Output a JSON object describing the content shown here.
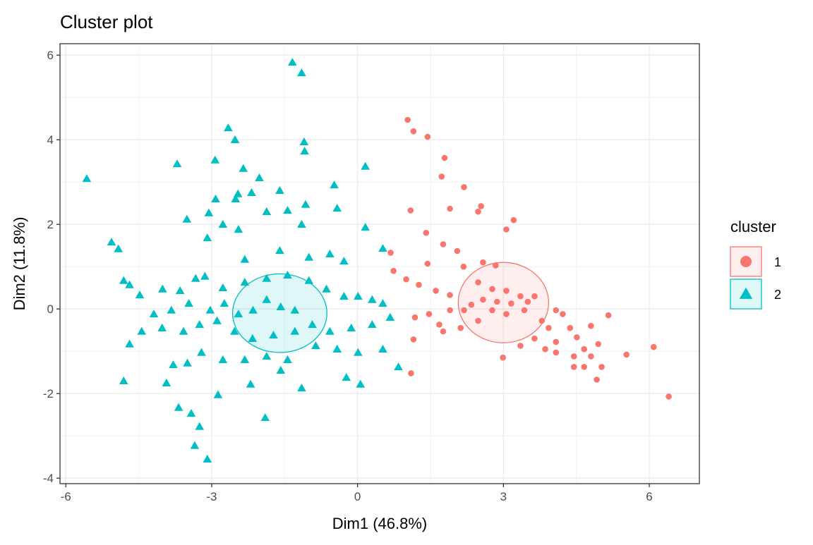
{
  "chart_data": {
    "type": "scatter",
    "title": "Cluster plot",
    "x_label": "Dim1 (46.8%)",
    "y_label": "Dim2 (11.8%)",
    "xlim": [
      -6.12,
      7.03
    ],
    "ylim": [
      -4.13,
      6.27
    ],
    "xticks": [
      -6,
      -3,
      0,
      3,
      6
    ],
    "yticks": [
      -4,
      -2,
      0,
      2,
      4,
      6
    ],
    "grid": true,
    "legend": "right",
    "legend_title": "cluster",
    "series": [
      {
        "name": "1",
        "color": "#F8766D",
        "shape": "circle",
        "ellipse": {
          "cx": 3.0,
          "cy": 0.15,
          "rx": 0.93,
          "ry": 0.95
        },
        "x": [
          1.03,
          1.15,
          1.44,
          1.79,
          1.73,
          2.19,
          2.54,
          2.48,
          1.9,
          1.09,
          3.21,
          3.06,
          1.41,
          1.76,
          0.68,
          2.05,
          1.44,
          2.18,
          2.58,
          2.84,
          0.74,
          1.0,
          1.26,
          1.61,
          1.9,
          2.48,
          2.77,
          3.06,
          3.35,
          3.64,
          2.58,
          2.87,
          3.16,
          3.5,
          2.34,
          2.77,
          3.06,
          3.43,
          2.19,
          1.9,
          1.47,
          1.18,
          1.68,
          2.12,
          2.48,
          3.79,
          4.08,
          4.22,
          3.93,
          4.37,
          4.8,
          5.16,
          3.64,
          4.08,
          4.51,
          3.35,
          3.86,
          4.66,
          4.95,
          2.99,
          4.08,
          4.45,
          4.8,
          4.45,
          4.66,
          5.02,
          5.53,
          6.09,
          4.92,
          6.4,
          1.1,
          1.15,
          1.76
        ],
        "y": [
          4.47,
          4.2,
          4.07,
          3.57,
          3.13,
          2.88,
          2.43,
          2.3,
          2.37,
          2.33,
          2.1,
          1.88,
          1.8,
          1.53,
          1.33,
          1.37,
          1.07,
          1.0,
          1.1,
          1.03,
          0.9,
          0.7,
          0.57,
          0.43,
          0.33,
          0.63,
          0.47,
          0.43,
          0.3,
          0.3,
          0.22,
          0.17,
          0.13,
          0.17,
          0.1,
          -0.03,
          -0.12,
          -0.03,
          -0.03,
          -0.03,
          -0.12,
          -0.2,
          -0.37,
          -0.45,
          -0.28,
          -0.28,
          -0.03,
          -0.12,
          -0.45,
          -0.45,
          -0.4,
          -0.15,
          -0.7,
          -0.78,
          -0.67,
          -0.87,
          -0.95,
          -0.95,
          -0.83,
          -1.15,
          -1.03,
          -1.12,
          -1.12,
          -1.37,
          -1.37,
          -1.37,
          -1.08,
          -0.9,
          -1.67,
          -2.07,
          -1.52,
          -0.72,
          -0.53
        ]
      },
      {
        "name": "2",
        "color": "#00BFC4",
        "shape": "triangle",
        "ellipse": {
          "cx": -1.6,
          "cy": -0.1,
          "rx": 0.97,
          "ry": 0.93
        },
        "x": [
          -1.34,
          -1.15,
          -5.57,
          -2.66,
          -2.52,
          -1.1,
          -1.09,
          -3.71,
          -2.93,
          -2.35,
          -2.02,
          0.16,
          -0.48,
          -1.6,
          -2.46,
          -2.18,
          -2.92,
          -2.51,
          -1.87,
          -1.44,
          -1.07,
          -0.42,
          -3.51,
          -3.06,
          -2.77,
          -3.09,
          -2.45,
          0.16,
          -1.15,
          -5.06,
          -4.92,
          -2.32,
          -1.6,
          -1.0,
          -0.57,
          -0.28,
          0.52,
          -4.81,
          -4.69,
          -4.01,
          -4.48,
          -3.65,
          -3.33,
          -3.14,
          -2.77,
          -2.32,
          -1.87,
          -1.44,
          -1.0,
          -0.64,
          -0.28,
          0.01,
          0.3,
          0.52,
          -1.87,
          -1.58,
          -1.29,
          -2.15,
          -2.45,
          -2.74,
          -3.03,
          -3.47,
          -3.83,
          -4.19,
          -4.44,
          -4.69,
          -4.02,
          -3.58,
          -3.25,
          -2.89,
          -2.53,
          -2.16,
          -1.73,
          -1.29,
          -0.93,
          -0.57,
          -0.13,
          0.3,
          0.67,
          -0.86,
          -0.42,
          0.01,
          0.52,
          0.84,
          -1.44,
          -1.87,
          -2.32,
          -2.77,
          -3.21,
          -3.79,
          -3.5,
          -4.81,
          -3.93,
          -3.68,
          -3.42,
          -3.25,
          -3.35,
          -3.09,
          -1.9,
          -2.87,
          -2.2,
          -1.15,
          0.06,
          -0.23,
          -1.58
        ],
        "y": [
          5.83,
          5.58,
          3.08,
          4.28,
          4.0,
          3.95,
          3.73,
          3.43,
          3.52,
          3.32,
          3.1,
          3.37,
          2.93,
          2.8,
          2.72,
          2.75,
          2.6,
          2.6,
          2.3,
          2.33,
          2.47,
          2.38,
          2.12,
          2.27,
          2.0,
          1.68,
          1.88,
          1.93,
          2.0,
          1.58,
          1.42,
          1.17,
          1.38,
          1.22,
          1.3,
          1.13,
          1.43,
          0.67,
          0.57,
          0.47,
          0.33,
          0.43,
          0.72,
          0.77,
          0.5,
          0.63,
          0.72,
          0.8,
          0.67,
          0.47,
          0.3,
          0.3,
          0.22,
          0.13,
          0.22,
          0.05,
          -0.03,
          -0.03,
          -0.12,
          0.13,
          -0.03,
          0.13,
          -0.03,
          -0.12,
          -0.53,
          -0.83,
          -0.45,
          -0.53,
          -0.37,
          -0.28,
          -0.53,
          -0.7,
          -0.62,
          -0.53,
          -0.37,
          -0.53,
          -0.45,
          -0.37,
          -0.2,
          -0.87,
          -0.95,
          -1.03,
          -0.95,
          -1.37,
          -1.2,
          -1.12,
          -1.2,
          -1.2,
          -1.03,
          -1.32,
          -1.28,
          -1.7,
          -1.75,
          -2.33,
          -2.47,
          -2.78,
          -3.23,
          -3.55,
          -2.57,
          -2.03,
          -1.78,
          -1.87,
          -1.78,
          -1.62,
          -1.45
        ]
      }
    ]
  }
}
